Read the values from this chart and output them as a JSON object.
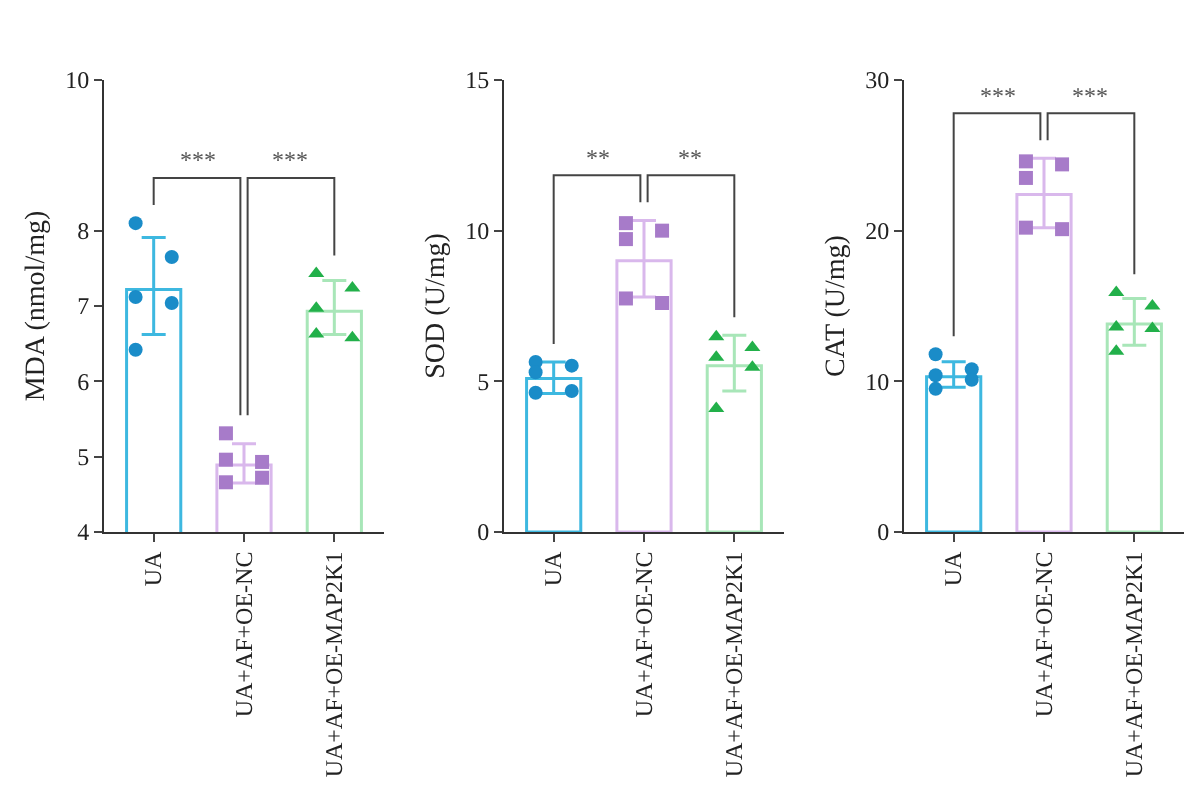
{
  "chart_data": [
    {
      "type": "bar",
      "ylabel": "MDA (nmol/mg)",
      "categories": [
        "UA",
        "UA+AF+OE-NC",
        "UA+AF+OE-MAP2K1"
      ],
      "ylim": [
        4,
        10
      ],
      "yticks": [
        4,
        5,
        6,
        7,
        8,
        10
      ],
      "annotations": [
        "***",
        "***"
      ],
      "series": [
        {
          "type": "bar",
          "values": [
            7.22,
            4.89,
            6.93
          ],
          "colors": [
            "#3db8e0",
            "#d9b8ec",
            "#a8e6b8"
          ],
          "errors": [
            [
              6.62,
              7.91
            ],
            [
              4.65,
              5.17
            ],
            [
              6.62,
              7.34
            ]
          ]
        },
        {
          "type": "scatter",
          "x": [
            "UA",
            "UA",
            "UA",
            "UA",
            "UA"
          ],
          "values": [
            8.1,
            7.65,
            7.12,
            7.04,
            6.42
          ],
          "color": "#1a8cc8",
          "marker": "circle"
        },
        {
          "type": "scatter",
          "x": [
            "UA+AF+OE-NC",
            "UA+AF+OE-NC",
            "UA+AF+OE-NC",
            "UA+AF+OE-NC",
            "UA+AF+OE-NC"
          ],
          "values": [
            5.31,
            4.93,
            4.96,
            4.72,
            4.66
          ],
          "color": "#a77bc9",
          "marker": "square"
        },
        {
          "type": "scatter",
          "x": [
            "UA+AF+OE-MAP2K1",
            "UA+AF+OE-MAP2K1",
            "UA+AF+OE-MAP2K1",
            "UA+AF+OE-MAP2K1",
            "UA+AF+OE-MAP2K1"
          ],
          "values": [
            7.43,
            7.24,
            6.97,
            6.58,
            6.63
          ],
          "color": "#22b04a",
          "marker": "triangle"
        }
      ]
    },
    {
      "type": "bar",
      "ylabel": "SOD (U/mg)",
      "categories": [
        "UA",
        "UA+AF+OE-NC",
        "UA+AF+OE-MAP2K1"
      ],
      "ylim": [
        0,
        15
      ],
      "yticks": [
        0,
        5,
        10,
        15
      ],
      "annotations": [
        "**",
        "**"
      ],
      "series": [
        {
          "type": "bar",
          "values": [
            5.09,
            9.0,
            5.52
          ],
          "colors": [
            "#3db8e0",
            "#d9b8ec",
            "#a8e6b8"
          ],
          "errors": [
            [
              4.6,
              5.64
            ],
            [
              7.8,
              10.34
            ],
            [
              4.68,
              6.53
            ]
          ]
        },
        {
          "type": "scatter",
          "x": [
            "UA",
            "UA",
            "UA",
            "UA",
            "UA"
          ],
          "values": [
            5.64,
            5.52,
            5.3,
            4.68,
            4.62
          ],
          "color": "#1a8cc8",
          "marker": "circle"
        },
        {
          "type": "scatter",
          "x": [
            "UA+AF+OE-NC",
            "UA+AF+OE-NC",
            "UA+AF+OE-NC",
            "UA+AF+OE-NC",
            "UA+AF+OE-NC"
          ],
          "values": [
            10.25,
            10.0,
            9.72,
            7.6,
            7.75
          ],
          "color": "#a77bc9",
          "marker": "square"
        },
        {
          "type": "scatter",
          "x": [
            "UA+AF+OE-MAP2K1",
            "UA+AF+OE-MAP2K1",
            "UA+AF+OE-MAP2K1",
            "UA+AF+OE-MAP2K1",
            "UA+AF+OE-MAP2K1"
          ],
          "values": [
            6.48,
            6.12,
            5.8,
            5.47,
            4.1
          ],
          "color": "#22b04a",
          "marker": "triangle"
        }
      ]
    },
    {
      "type": "bar",
      "ylabel": "CAT (U/mg)",
      "categories": [
        "UA",
        "UA+AF+OE-NC",
        "UA+AF+OE-MAP2K1"
      ],
      "ylim": [
        0,
        30
      ],
      "yticks": [
        0,
        10,
        20,
        30
      ],
      "annotations": [
        "***",
        "***"
      ],
      "series": [
        {
          "type": "bar",
          "values": [
            10.3,
            22.4,
            13.8
          ],
          "colors": [
            "#3db8e0",
            "#d9b8ec",
            "#a8e6b8"
          ],
          "errors": [
            [
              9.6,
              11.3
            ],
            [
              20.2,
              24.8
            ],
            [
              12.4,
              15.5
            ]
          ]
        },
        {
          "type": "scatter",
          "x": [
            "UA",
            "UA",
            "UA",
            "UA",
            "UA"
          ],
          "values": [
            11.8,
            10.8,
            10.4,
            10.1,
            9.5
          ],
          "color": "#1a8cc8",
          "marker": "circle"
        },
        {
          "type": "scatter",
          "x": [
            "UA+AF+OE-NC",
            "UA+AF+OE-NC",
            "UA+AF+OE-NC",
            "UA+AF+OE-NC",
            "UA+AF+OE-NC"
          ],
          "values": [
            24.6,
            24.4,
            23.5,
            20.1,
            20.2
          ],
          "color": "#a77bc9",
          "marker": "square"
        },
        {
          "type": "scatter",
          "x": [
            "UA+AF+OE-MAP2K1",
            "UA+AF+OE-MAP2K1",
            "UA+AF+OE-MAP2K1",
            "UA+AF+OE-MAP2K1",
            "UA+AF+OE-MAP2K1"
          ],
          "values": [
            15.9,
            15.0,
            13.6,
            13.5,
            12.0
          ],
          "color": "#22b04a",
          "marker": "triangle"
        }
      ]
    }
  ]
}
